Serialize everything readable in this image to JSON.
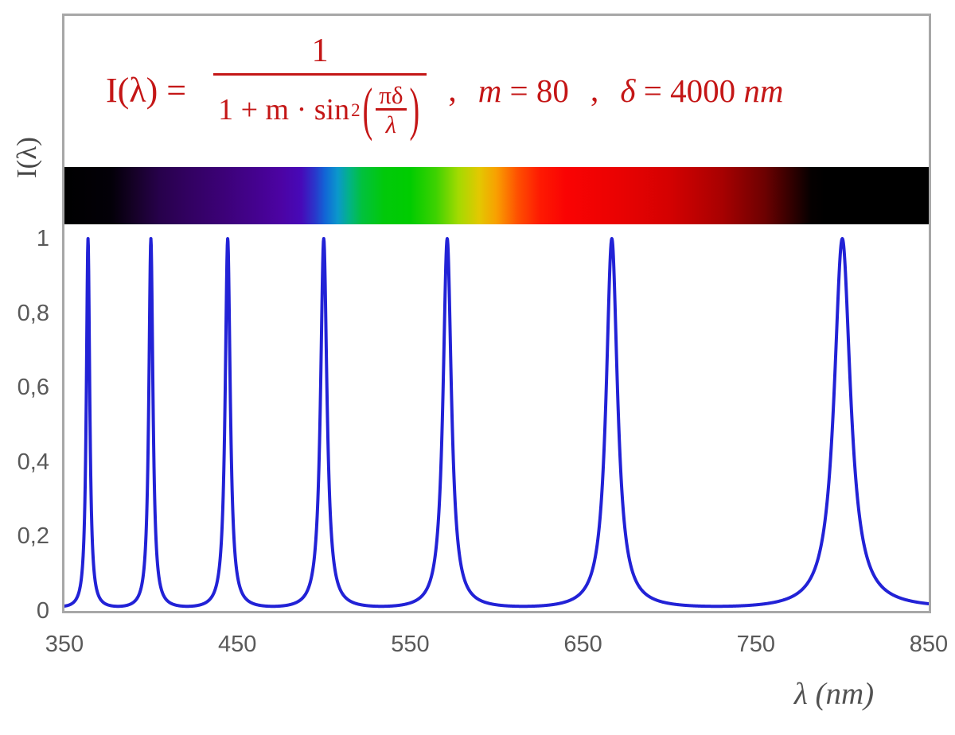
{
  "figure": {
    "kind": "Fabry-Perot / Airy transmission function plot with visible-spectrum strip",
    "background": "#ffffff",
    "frame_color": "#a7a7a7"
  },
  "formula": {
    "color": "#c41616",
    "lhs": "I(λ) =",
    "numerator": "1",
    "den_prefix": "1 + m · sin",
    "den_sup": "2",
    "inner_num": "πδ",
    "inner_den": "λ",
    "paren_open": "(",
    "paren_close": ")",
    "comma": ",",
    "param_m_var": "m",
    "param_m_rest": " = 80",
    "param_d_var": "δ",
    "param_d_rest": " = 4000 ",
    "param_d_unit": "nm"
  },
  "chart_data": {
    "type": "line",
    "title": "I(λ) = 1 / (1 + m·sin²(πδ/λ)) ,  m = 80 ,  δ = 4000 nm",
    "function": {
      "form": "I(lambda) = 1 / (1 + m * sin(pi*delta/lambda)^2)",
      "m": 80,
      "delta_nm": 4000
    },
    "x": {
      "label": "λ  (nm)",
      "min": 350,
      "max": 850,
      "tick_values": [
        350,
        450,
        550,
        650,
        750,
        850
      ],
      "tick_labels": [
        "350",
        "450",
        "550",
        "650",
        "750",
        "850"
      ]
    },
    "y": {
      "label": "I(λ)",
      "min": 0,
      "max": 1,
      "tick_values": [
        1,
        0.8,
        0.6,
        0.4,
        0.2,
        0
      ],
      "tick_labels": [
        "1",
        "0,8",
        "0,6",
        "0,4",
        "0,2",
        "0"
      ]
    },
    "grid": false,
    "legend": false,
    "series": [
      {
        "name": "I(λ)",
        "color": "#2222d6",
        "stroke_width": 4,
        "peak_wavelengths_nm": [
          363.64,
          400.0,
          444.44,
          500.0,
          571.43,
          666.67,
          800.0
        ],
        "peak_value": 1.0,
        "min_value": 0.0123
      }
    ]
  },
  "spectrum_bar": {
    "description": "visible light spectrum strip spanning 350–850 nm, black outside visible range",
    "stops": [
      {
        "nm": 350,
        "color": "#000000"
      },
      {
        "nm": 377,
        "color": "#030008"
      },
      {
        "nm": 390,
        "color": "#150126"
      },
      {
        "nm": 405,
        "color": "#27014b"
      },
      {
        "nm": 420,
        "color": "#31015f"
      },
      {
        "nm": 440,
        "color": "#3b0175"
      },
      {
        "nm": 460,
        "color": "#44028e"
      },
      {
        "nm": 475,
        "color": "#4c03a3"
      },
      {
        "nm": 487,
        "color": "#4709b8"
      },
      {
        "nm": 495,
        "color": "#2937cb"
      },
      {
        "nm": 501,
        "color": "#1167d6"
      },
      {
        "nm": 508,
        "color": "#0b97cc"
      },
      {
        "nm": 515,
        "color": "#02b385"
      },
      {
        "nm": 522,
        "color": "#01c13e"
      },
      {
        "nm": 535,
        "color": "#01c90a"
      },
      {
        "nm": 550,
        "color": "#00cc00"
      },
      {
        "nm": 565,
        "color": "#3ed201"
      },
      {
        "nm": 578,
        "color": "#a4da01"
      },
      {
        "nm": 590,
        "color": "#e3c801"
      },
      {
        "nm": 600,
        "color": "#f99f01"
      },
      {
        "nm": 612,
        "color": "#fe5101"
      },
      {
        "nm": 625,
        "color": "#fe1a02"
      },
      {
        "nm": 640,
        "color": "#fa0303"
      },
      {
        "nm": 670,
        "color": "#ea0202"
      },
      {
        "nm": 700,
        "color": "#d40101"
      },
      {
        "nm": 730,
        "color": "#a80101"
      },
      {
        "nm": 755,
        "color": "#6d0101"
      },
      {
        "nm": 772,
        "color": "#2c0000"
      },
      {
        "nm": 782,
        "color": "#050000"
      },
      {
        "nm": 790,
        "color": "#000000"
      },
      {
        "nm": 850,
        "color": "#000000"
      }
    ]
  }
}
